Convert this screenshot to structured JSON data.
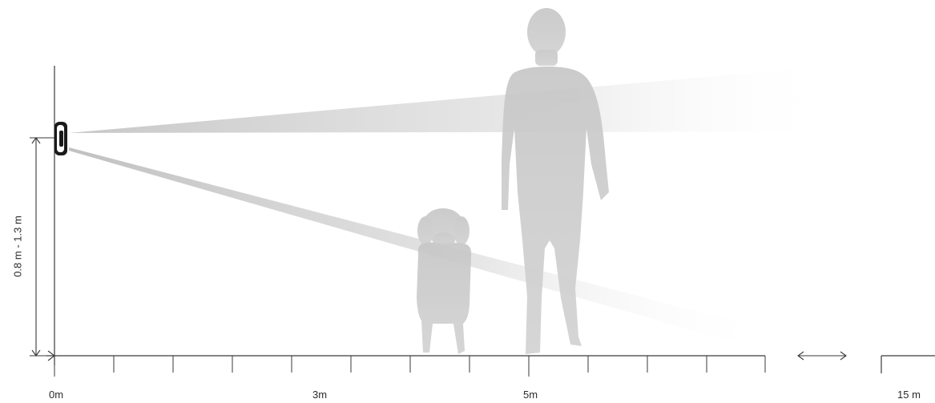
{
  "labels": {
    "height_range": "0.8 m - 1.3 m",
    "distances": [
      "0m",
      "3m",
      "5m",
      "15 m"
    ]
  },
  "colors": {
    "silhouette": "#c9c9c9",
    "silhouette_dark": "#bdbdbd",
    "beam": "#c8c8c8",
    "axis": "#3a3a3a",
    "sensor": "#1a1a1a"
  },
  "icons": {
    "sensor": "detector-icon",
    "person": "person-icon",
    "dog": "dog-icon",
    "range_arrow": "double-arrow-icon"
  }
}
